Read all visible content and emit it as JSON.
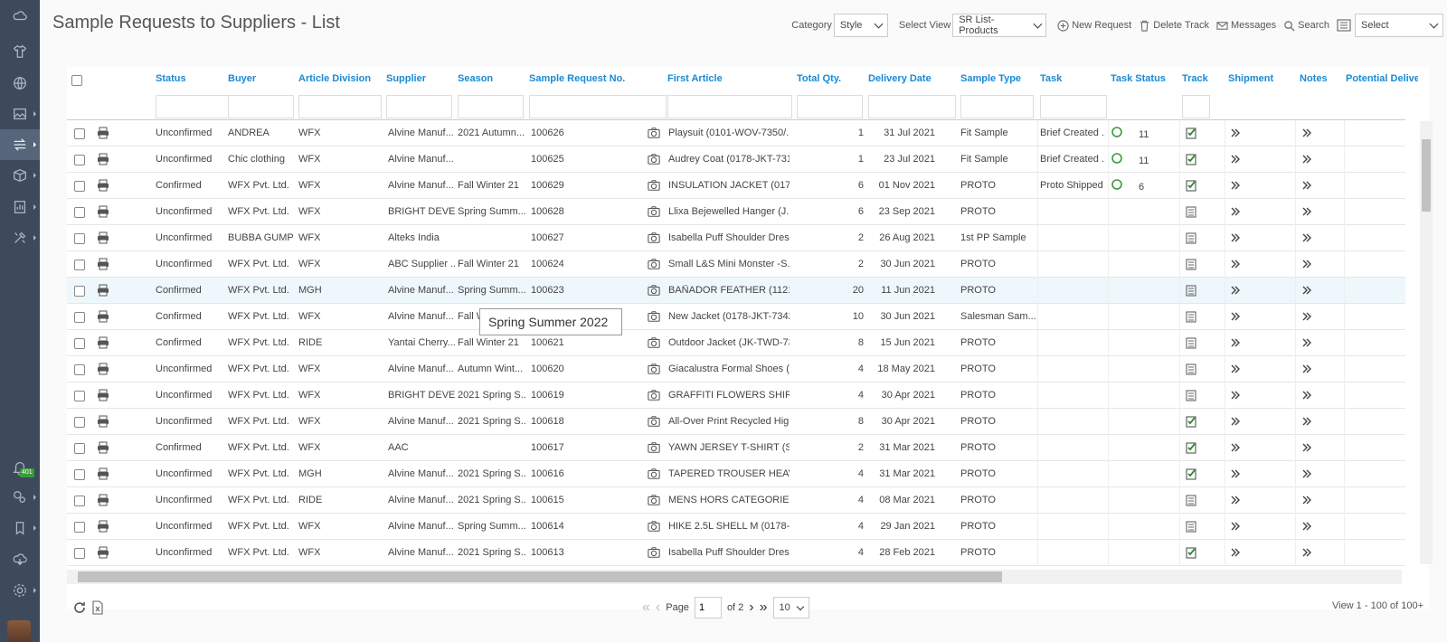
{
  "page": {
    "title": "Sample Requests to Suppliers - List"
  },
  "toolbar": {
    "category_label": "Category",
    "category_value": "Style",
    "view_label": "Select View",
    "view_value": "SR List-Products",
    "new_request": "New Request",
    "delete_track": "Delete Track",
    "messages": "Messages",
    "search": "Search",
    "select_value": "Select"
  },
  "sidebar": {
    "notification_count": "401"
  },
  "columns": [
    "Status",
    "Buyer",
    "Article Division",
    "Supplier",
    "Season",
    "Sample Request No.",
    "First Article",
    "Total Qty.",
    "Delivery Date",
    "Sample Type",
    "Task",
    "Task Status",
    "Track",
    "Shipment",
    "Notes",
    "Potential Delivery Da"
  ],
  "rows": [
    {
      "status": "Unconfirmed",
      "buyer": "ANDREA",
      "division": "WFX",
      "supplier": "Alvine Manuf...",
      "season": "2021 Autumn...",
      "srno": "100626",
      "article": "Playsuit (0101-WOV-7350/...",
      "qty": "1",
      "date": "31 Jul 2021",
      "type": "Fit Sample",
      "task": "Brief Created ...",
      "task_status": "11",
      "track": "checked"
    },
    {
      "status": "Unconfirmed",
      "buyer": "Chic clothing",
      "division": "WFX",
      "supplier": "Alvine Manuf...",
      "season": "",
      "srno": "100625",
      "article": "Audrey Coat (0178-JKT-731...",
      "qty": "1",
      "date": "23 Jul 2021",
      "type": "Fit Sample",
      "task": "Brief Created ...",
      "task_status": "11",
      "track": "checked"
    },
    {
      "status": "Confirmed",
      "buyer": "WFX Pvt. Ltd.",
      "division": "WFX",
      "supplier": "Alvine Manuf...",
      "season": "Fall Winter 21",
      "srno": "100629",
      "article": "INSULATION JACKET (0178-...",
      "qty": "6",
      "date": "01 Nov 2021",
      "type": "PROTO",
      "task": "Proto Shipped",
      "task_status": "6",
      "track": "checked"
    },
    {
      "status": "Unconfirmed",
      "buyer": "WFX Pvt. Ltd.",
      "division": "WFX",
      "supplier": "BRIGHT DEVE...",
      "season": "Spring Summ...",
      "srno": "100628",
      "article": "Llixa Bejewelled Hanger (J...",
      "qty": "6",
      "date": "23 Sep 2021",
      "type": "PROTO",
      "task": "",
      "task_status": "",
      "track": "list"
    },
    {
      "status": "Unconfirmed",
      "buyer": "BUBBA GUMP",
      "division": "WFX",
      "supplier": "Alteks India",
      "season": "",
      "srno": "100627",
      "article": "Isabella Puff Shoulder Dres...",
      "qty": "2",
      "date": "26 Aug 2021",
      "type": "1st PP Sample",
      "task": "",
      "task_status": "",
      "track": "list"
    },
    {
      "status": "Unconfirmed",
      "buyer": "WFX Pvt. Ltd.",
      "division": "WFX",
      "supplier": "ABC Supplier ...",
      "season": "Fall Winter 21",
      "srno": "100624",
      "article": "Small L&S Mini Monster -S...",
      "qty": "2",
      "date": "30 Jun 2021",
      "type": "PROTO",
      "task": "",
      "task_status": "",
      "track": "list"
    },
    {
      "status": "Confirmed",
      "buyer": "WFX Pvt. Ltd.",
      "division": "MGH",
      "supplier": "Alvine Manuf...",
      "season": "Spring Summ...",
      "srno": "100623",
      "article": "BAÑADOR FEATHER (11213...",
      "qty": "20",
      "date": "11 Jun 2021",
      "type": "PROTO",
      "task": "",
      "task_status": "",
      "track": "list"
    },
    {
      "status": "Confirmed",
      "buyer": "WFX Pvt. Ltd.",
      "division": "WFX",
      "supplier": "Alvine Manuf...",
      "season": "Fall Win",
      "srno": "",
      "article": "New Jacket (0178-JKT-7342/...",
      "qty": "10",
      "date": "30 Jun 2021",
      "type": "Salesman Sam...",
      "task": "",
      "task_status": "",
      "track": "list"
    },
    {
      "status": "Confirmed",
      "buyer": "WFX Pvt. Ltd.",
      "division": "RIDE",
      "supplier": "Yantai Cherry...",
      "season": "Fall Winter 21",
      "srno": "100621",
      "article": "Outdoor Jacket (JK-TWD-73...",
      "qty": "8",
      "date": "15 Jun 2021",
      "type": "PROTO",
      "task": "",
      "task_status": "",
      "track": "list"
    },
    {
      "status": "Unconfirmed",
      "buyer": "WFX Pvt. Ltd.",
      "division": "WFX",
      "supplier": "Alvine Manuf...",
      "season": "Autumn Wint...",
      "srno": "100620",
      "article": "Giacalustra Formal Shoes (...",
      "qty": "4",
      "date": "18 May 2021",
      "type": "PROTO",
      "task": "",
      "task_status": "",
      "track": "list"
    },
    {
      "status": "Unconfirmed",
      "buyer": "WFX Pvt. Ltd.",
      "division": "WFX",
      "supplier": "BRIGHT DEVE...",
      "season": "2021 Spring S...",
      "srno": "100619",
      "article": "GRAFFITI FLOWERS SHIRRE...",
      "qty": "4",
      "date": "30 Apr 2021",
      "type": "PROTO",
      "task": "",
      "task_status": "",
      "track": "list"
    },
    {
      "status": "Unconfirmed",
      "buyer": "WFX Pvt. Ltd.",
      "division": "WFX",
      "supplier": "Alvine Manuf...",
      "season": "2021 Spring S...",
      "srno": "100618",
      "article": "All-Over Print Recycled Hig...",
      "qty": "8",
      "date": "30 Apr 2021",
      "type": "PROTO",
      "task": "",
      "task_status": "",
      "track": "checked"
    },
    {
      "status": "Confirmed",
      "buyer": "WFX Pvt. Ltd.",
      "division": "WFX",
      "supplier": "AAC",
      "season": "",
      "srno": "100617",
      "article": "YAWN JERSEY T-SHIRT (SST-...",
      "qty": "2",
      "date": "31 Mar 2021",
      "type": "PROTO",
      "task": "",
      "task_status": "",
      "track": "checked"
    },
    {
      "status": "Unconfirmed",
      "buyer": "WFX Pvt. Ltd.",
      "division": "MGH",
      "supplier": "Alvine Manuf...",
      "season": "2021 Spring S...",
      "srno": "100616",
      "article": "TAPERED TROUSER HEAVY ...",
      "qty": "4",
      "date": "31 Mar 2021",
      "type": "PROTO",
      "task": "",
      "task_status": "",
      "track": "checked"
    },
    {
      "status": "Unconfirmed",
      "buyer": "WFX Pvt. Ltd.",
      "division": "RIDE",
      "supplier": "Alvine Manuf...",
      "season": "2021 Spring S...",
      "srno": "100615",
      "article": "MENS HORS CATEGORIE BI...",
      "qty": "4",
      "date": "08 Mar 2021",
      "type": "PROTO",
      "task": "",
      "task_status": "",
      "track": "list"
    },
    {
      "status": "Unconfirmed",
      "buyer": "WFX Pvt. Ltd.",
      "division": "WFX",
      "supplier": "Alvine Manuf...",
      "season": "Spring Summ...",
      "srno": "100614",
      "article": "HIKE 2.5L SHELL M (0178-J...",
      "qty": "4",
      "date": "29 Jan 2021",
      "type": "PROTO",
      "task": "",
      "task_status": "",
      "track": "list"
    },
    {
      "status": "Unconfirmed",
      "buyer": "WFX Pvt. Ltd.",
      "division": "WFX",
      "supplier": "Alvine Manuf...",
      "season": "2021 Spring S...",
      "srno": "100613",
      "article": "Isabella Puff Shoulder Dres...",
      "qty": "4",
      "date": "28 Feb 2021",
      "type": "PROTO",
      "task": "",
      "task_status": "",
      "track": "checked"
    }
  ],
  "tooltip": "Spring Summer 2022",
  "footer": {
    "page_label": "Page",
    "page_value": "1",
    "of_label": "of 2",
    "page_size": "10",
    "view_count": "View 1 - 100 of 100+"
  },
  "colors": {
    "accent": "#1a8ad4",
    "sidebar": "#3d4a5c",
    "status_green": "#3a9b3a"
  }
}
